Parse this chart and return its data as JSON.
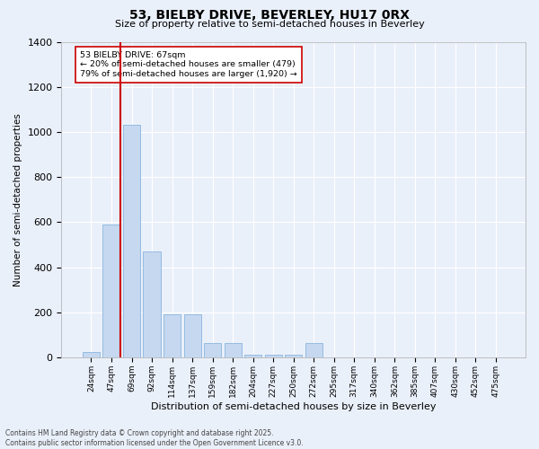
{
  "title_line1": "53, BIELBY DRIVE, BEVERLEY, HU17 0RX",
  "title_line2": "Size of property relative to semi-detached houses in Beverley",
  "xlabel": "Distribution of semi-detached houses by size in Beverley",
  "ylabel": "Number of semi-detached properties",
  "categories": [
    "24sqm",
    "47sqm",
    "69sqm",
    "92sqm",
    "114sqm",
    "137sqm",
    "159sqm",
    "182sqm",
    "204sqm",
    "227sqm",
    "250sqm",
    "272sqm",
    "295sqm",
    "317sqm",
    "340sqm",
    "362sqm",
    "385sqm",
    "407sqm",
    "430sqm",
    "452sqm",
    "475sqm"
  ],
  "bar_heights": [
    25,
    590,
    1030,
    470,
    190,
    190,
    65,
    65,
    12,
    12,
    10,
    65,
    0,
    0,
    0,
    0,
    0,
    0,
    0,
    0,
    0
  ],
  "bar_color": "#c5d8f0",
  "bar_edge_color": "#7aabdb",
  "ylim": [
    0,
    1400
  ],
  "yticks": [
    0,
    200,
    400,
    600,
    800,
    1000,
    1200,
    1400
  ],
  "vline_color": "#cc0000",
  "annotation_text": "53 BIELBY DRIVE: 67sqm\n← 20% of semi-detached houses are smaller (479)\n79% of semi-detached houses are larger (1,920) →",
  "footer_line1": "Contains HM Land Registry data © Crown copyright and database right 2025.",
  "footer_line2": "Contains public sector information licensed under the Open Government Licence v3.0.",
  "background_color": "#eaf0fa",
  "plot_background": "#eaf0fa",
  "grid_color": "#ffffff"
}
